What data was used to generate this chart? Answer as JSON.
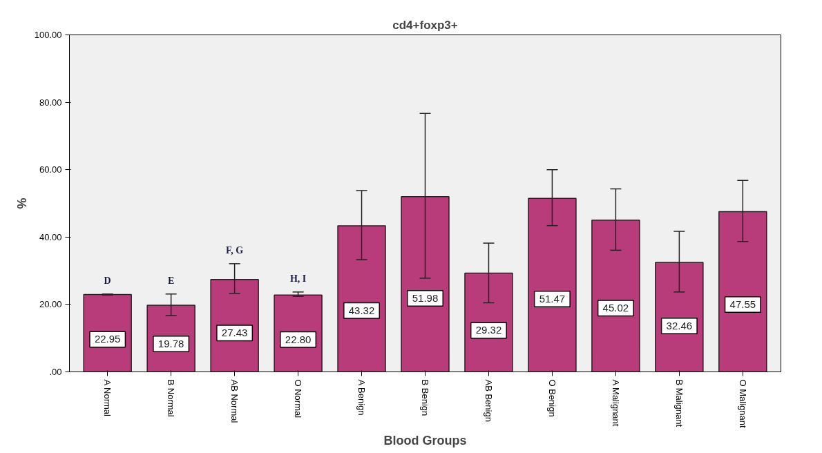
{
  "chart_data": {
    "type": "bar",
    "title": "cd4+foxp3+",
    "xlabel": "Blood Groups",
    "ylabel": "%",
    "categories": [
      "A Normal",
      "B Normal",
      "AB Normal",
      "O Normal",
      "A Benign",
      "B Benign",
      "AB Benign",
      "O Benign",
      "A Malignant",
      "B Malignant",
      "O Malignant"
    ],
    "values": [
      22.95,
      19.78,
      27.43,
      22.8,
      43.32,
      51.98,
      29.32,
      51.47,
      45.02,
      32.46,
      47.55
    ],
    "errors": [
      [
        22.8,
        23.1
      ],
      [
        16.7,
        23.1
      ],
      [
        23.3,
        32.1
      ],
      [
        22.4,
        23.7
      ],
      [
        33.3,
        53.8
      ],
      [
        27.8,
        76.7
      ],
      [
        20.5,
        38.2
      ],
      [
        43.4,
        60.0
      ],
      [
        36.1,
        54.3
      ],
      [
        23.7,
        41.7
      ],
      [
        38.7,
        56.8
      ]
    ],
    "color": "#b83c7a",
    "value_labels": [
      "22.95",
      "19.78",
      "27.43",
      "22.80",
      "43.32",
      "51.98",
      "29.32",
      "51.47",
      "45.02",
      "32.46",
      "47.55"
    ],
    "ylim": [
      0,
      100
    ],
    "yticks": [
      {
        "value": 0,
        "label": ".00"
      },
      {
        "value": 20,
        "label": "20.00"
      },
      {
        "value": 40,
        "label": "40.00"
      },
      {
        "value": 60,
        "label": "60.00"
      },
      {
        "value": 80,
        "label": "80.00"
      },
      {
        "value": 100,
        "label": "100.00"
      }
    ],
    "grid": false,
    "annotations": [
      "D",
      "E",
      "F, G",
      "H, I"
    ]
  }
}
